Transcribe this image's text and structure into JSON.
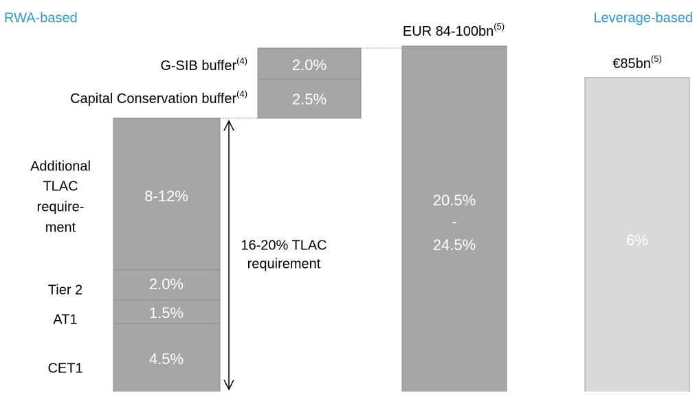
{
  "headers": {
    "left": "RWA-based",
    "right": "Leverage-based"
  },
  "buffers": [
    {
      "label": "G-SIB buffer",
      "note": "(4)",
      "value": "2.0%"
    },
    {
      "label": "Capital Conservation buffer",
      "note": "(4)",
      "value": "2.5%"
    }
  ],
  "stack": [
    {
      "label": [
        "Additional",
        "TLAC",
        "require-",
        "ment"
      ],
      "value": "8-12%"
    },
    {
      "label": [
        "Tier 2"
      ],
      "value": "2.0%"
    },
    {
      "label": [
        "AT1"
      ],
      "value": "1.5%"
    },
    {
      "label": [
        "CET1"
      ],
      "value": "4.5%"
    }
  ],
  "bracket": [
    "16-20% TLAC",
    "requirement"
  ],
  "total_rwa": {
    "label": "EUR 84-100bn",
    "note": "(5)",
    "value": [
      "20.5%",
      "-",
      "24.5%"
    ]
  },
  "total_leverage": {
    "label": "€85bn",
    "note": "(5)",
    "value": "6%"
  }
}
